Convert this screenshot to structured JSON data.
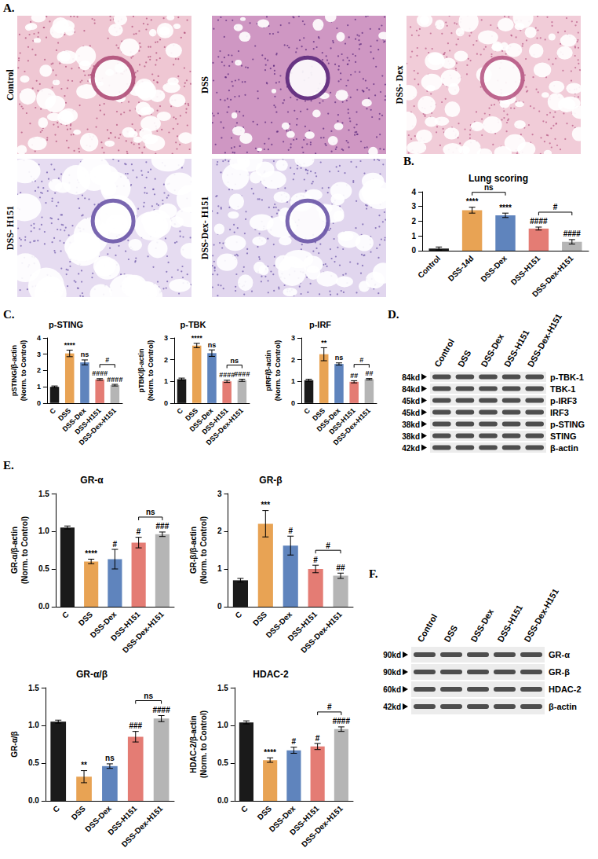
{
  "panel_letters": [
    "A.",
    "B.",
    "C.",
    "D.",
    "E.",
    "F."
  ],
  "histology": {
    "labels": [
      "Control",
      "DSS",
      "DSS- Dex",
      "DSS- H151",
      "DSS-Dex- H151"
    ]
  },
  "chart_data": [
    {
      "type": "bar",
      "title": "Lung scoring",
      "categories": [
        "Control",
        "DSS-14d",
        "DSS-Dex",
        "DSS-H151",
        "DSS-Dex-H151"
      ],
      "values": [
        0.15,
        2.75,
        2.4,
        1.5,
        0.6
      ],
      "errors": [
        0.1,
        0.2,
        0.15,
        0.1,
        0.15
      ],
      "colors": [
        "#1a1a1a",
        "#e8a354",
        "#5f84bd",
        "#e47c74",
        "#b5b5b5"
      ],
      "ylim": [
        0,
        4
      ],
      "yticks": [
        0,
        1,
        2,
        3,
        4
      ],
      "grid": false,
      "annotations": [
        null,
        "****",
        "****",
        "####",
        "####"
      ],
      "comparisons": [
        {
          "between": [
            "DSS-14d",
            "DSS-Dex"
          ],
          "label": "ns"
        },
        {
          "between": [
            "DSS-H151",
            "DSS-Dex-H151"
          ],
          "label": "#"
        }
      ]
    },
    {
      "type": "bar",
      "title": "p-STING",
      "y_label": "pSTING/β-actin\n(Norm. to Control)",
      "categories": [
        "C",
        "DSS",
        "DSS-Dex",
        "DSS-H151",
        "DSS-Dex-H151"
      ],
      "values": [
        1.0,
        3.05,
        2.5,
        1.45,
        1.1
      ],
      "errors": [
        0.05,
        0.2,
        0.15,
        0.05,
        0.05
      ],
      "colors": [
        "#1a1a1a",
        "#e8a354",
        "#5f84bd",
        "#e47c74",
        "#b5b5b5"
      ],
      "ylim": [
        0,
        4
      ],
      "yticks": [
        0,
        1,
        2,
        3,
        4
      ],
      "grid": false,
      "annotations": [
        null,
        "****",
        "ns",
        "####",
        "####"
      ],
      "comparisons": [
        {
          "between": [
            "DSS-H151",
            "DSS-Dex-H151"
          ],
          "label": "#"
        }
      ]
    },
    {
      "type": "bar",
      "title": "p-TBK",
      "y_label": "pTBK/β-actin\n(Norm. to Control)",
      "categories": [
        "C",
        "DSS",
        "DSS-Dex",
        "DSS-H151",
        "DSS-Dex-H151"
      ],
      "values": [
        1.1,
        2.65,
        2.3,
        1.0,
        1.05
      ],
      "errors": [
        0.05,
        0.1,
        0.15,
        0.05,
        0.05
      ],
      "colors": [
        "#1a1a1a",
        "#e8a354",
        "#5f84bd",
        "#e47c74",
        "#b5b5b5"
      ],
      "ylim": [
        0,
        3
      ],
      "yticks": [
        0,
        1,
        2,
        3
      ],
      "grid": false,
      "annotations": [
        null,
        "****",
        "ns",
        "####",
        "####"
      ],
      "comparisons": [
        {
          "between": [
            "DSS-H151",
            "DSS-Dex-H151"
          ],
          "label": "ns"
        }
      ]
    },
    {
      "type": "bar",
      "title": "p-IRF",
      "y_label": "pIRF/β-actin\n(Norm. to Control)",
      "categories": [
        "C",
        "DSS",
        "DSS-Dex",
        "DSS-H151",
        "DSS-Dex-H151"
      ],
      "values": [
        1.05,
        2.25,
        1.8,
        0.98,
        1.1
      ],
      "errors": [
        0.05,
        0.3,
        0.05,
        0.05,
        0.03
      ],
      "colors": [
        "#1a1a1a",
        "#e8a354",
        "#5f84bd",
        "#e47c74",
        "#b5b5b5"
      ],
      "ylim": [
        0,
        3
      ],
      "yticks": [
        0,
        1,
        2,
        3
      ],
      "grid": false,
      "annotations": [
        null,
        "**",
        "ns",
        "##",
        "##"
      ],
      "comparisons": [
        {
          "between": [
            "DSS-H151",
            "DSS-Dex-H151"
          ],
          "label": "#"
        }
      ]
    },
    {
      "type": "bar",
      "title": "GR-α",
      "y_label": "GR-α/β-actin\n(Norm. to Control)",
      "categories": [
        "C",
        "DSS",
        "DSS-Dex",
        "DSS-H151",
        "DSS-Dex-H151"
      ],
      "values": [
        1.05,
        0.6,
        0.63,
        0.85,
        0.96
      ],
      "errors": [
        0.02,
        0.03,
        0.13,
        0.07,
        0.03
      ],
      "colors": [
        "#1a1a1a",
        "#e8a354",
        "#5f84bd",
        "#e47c74",
        "#b5b5b5"
      ],
      "ylim": [
        0,
        1.5
      ],
      "yticks": [
        {
          "value": 0,
          "label": "0.0"
        },
        {
          "value": 0.5,
          "label": "0.5"
        },
        {
          "value": 1,
          "label": "1.0"
        },
        {
          "value": 1.5,
          "label": "1.5"
        }
      ],
      "grid": false,
      "annotations": [
        null,
        "****",
        "#",
        "#",
        "###"
      ],
      "comparisons": [
        {
          "between": [
            "DSS-H151",
            "DSS-Dex-H151"
          ],
          "label": "ns"
        }
      ]
    },
    {
      "type": "bar",
      "title": "GR-β",
      "y_label": "GR-β/β-actin\n(Norm. to Control)",
      "categories": [
        "C",
        "DSS",
        "DSS-Dex",
        "DSS-H151",
        "DSS-Dex-H151"
      ],
      "values": [
        0.7,
        2.2,
        1.62,
        1.0,
        0.82
      ],
      "errors": [
        0.05,
        0.35,
        0.25,
        0.1,
        0.07
      ],
      "colors": [
        "#1a1a1a",
        "#e8a354",
        "#5f84bd",
        "#e47c74",
        "#b5b5b5"
      ],
      "ylim": [
        0,
        3
      ],
      "yticks": [
        0,
        1,
        2,
        3
      ],
      "grid": false,
      "annotations": [
        null,
        "***",
        "#",
        "#",
        "##"
      ],
      "comparisons": [
        {
          "between": [
            "DSS-H151",
            "DSS-Dex-H151"
          ],
          "label": "#"
        }
      ]
    },
    {
      "type": "bar",
      "title": "GR-α/β",
      "y_label": "GR-α/β",
      "categories": [
        "C",
        "DSS",
        "DSS-Dex",
        "DSS-H151",
        "DSS-Dex-H151"
      ],
      "values": [
        1.05,
        0.32,
        0.46,
        0.85,
        1.09
      ],
      "errors": [
        0.02,
        0.08,
        0.03,
        0.07,
        0.04
      ],
      "colors": [
        "#1a1a1a",
        "#e8a354",
        "#5f84bd",
        "#e47c74",
        "#b5b5b5"
      ],
      "ylim": [
        0,
        1.5
      ],
      "yticks": [
        {
          "value": 0,
          "label": "0.0"
        },
        {
          "value": 0.5,
          "label": "0.5"
        },
        {
          "value": 1,
          "label": "1.0"
        },
        {
          "value": 1.5,
          "label": "1.5"
        }
      ],
      "grid": false,
      "annotations": [
        null,
        "**",
        "ns",
        "###",
        "####"
      ],
      "comparisons": [
        {
          "between": [
            "DSS-H151",
            "DSS-Dex-H151"
          ],
          "label": "ns"
        }
      ]
    },
    {
      "type": "bar",
      "title": "HDAC-2",
      "y_label": "HDAC-2/β-actin\n(Norm. to Control)",
      "categories": [
        "C",
        "DSS",
        "DSS-Dex",
        "DSS-H151",
        "DSS-Dex-H151"
      ],
      "values": [
        1.04,
        0.54,
        0.67,
        0.72,
        0.95
      ],
      "errors": [
        0.02,
        0.03,
        0.04,
        0.04,
        0.03
      ],
      "colors": [
        "#1a1a1a",
        "#e8a354",
        "#5f84bd",
        "#e47c74",
        "#b5b5b5"
      ],
      "ylim": [
        0,
        1.5
      ],
      "yticks": [
        {
          "value": 0,
          "label": "0.0"
        },
        {
          "value": 0.5,
          "label": "0.5"
        },
        {
          "value": 1,
          "label": "1.0"
        },
        {
          "value": 1.5,
          "label": "1.5"
        }
      ],
      "grid": false,
      "annotations": [
        null,
        "****",
        "#",
        "#",
        "####"
      ],
      "comparisons": [
        {
          "between": [
            "DSS-H151",
            "DSS-Dex-H151"
          ],
          "label": "#"
        }
      ]
    }
  ],
  "blots": [
    {
      "lanes": [
        "Control",
        "DSS",
        "DSS-Dex",
        "DSS-H151",
        "DSS-Dex-H151"
      ],
      "bands": [
        {
          "label": "p-TBK-1",
          "size": "84kd"
        },
        {
          "label": "TBK-1",
          "size": "84kd"
        },
        {
          "label": "p-IRF3",
          "size": "45kd"
        },
        {
          "label": "IRF3",
          "size": "45kd"
        },
        {
          "label": "p-STING",
          "size": "38kd"
        },
        {
          "label": "STING",
          "size": "38kd"
        },
        {
          "label": "β-actin",
          "size": "42kd"
        }
      ]
    },
    {
      "lanes": [
        "Control",
        "DSS",
        "DSS-Dex",
        "DSS-H151",
        "DSS-Dex-H151"
      ],
      "bands": [
        {
          "label": "GR-α",
          "size": "90kd"
        },
        {
          "label": "GR-β",
          "size": "90kd"
        },
        {
          "label": "HDAC-2",
          "size": "60kd"
        },
        {
          "label": "β-actin",
          "size": "42kd"
        }
      ]
    }
  ]
}
